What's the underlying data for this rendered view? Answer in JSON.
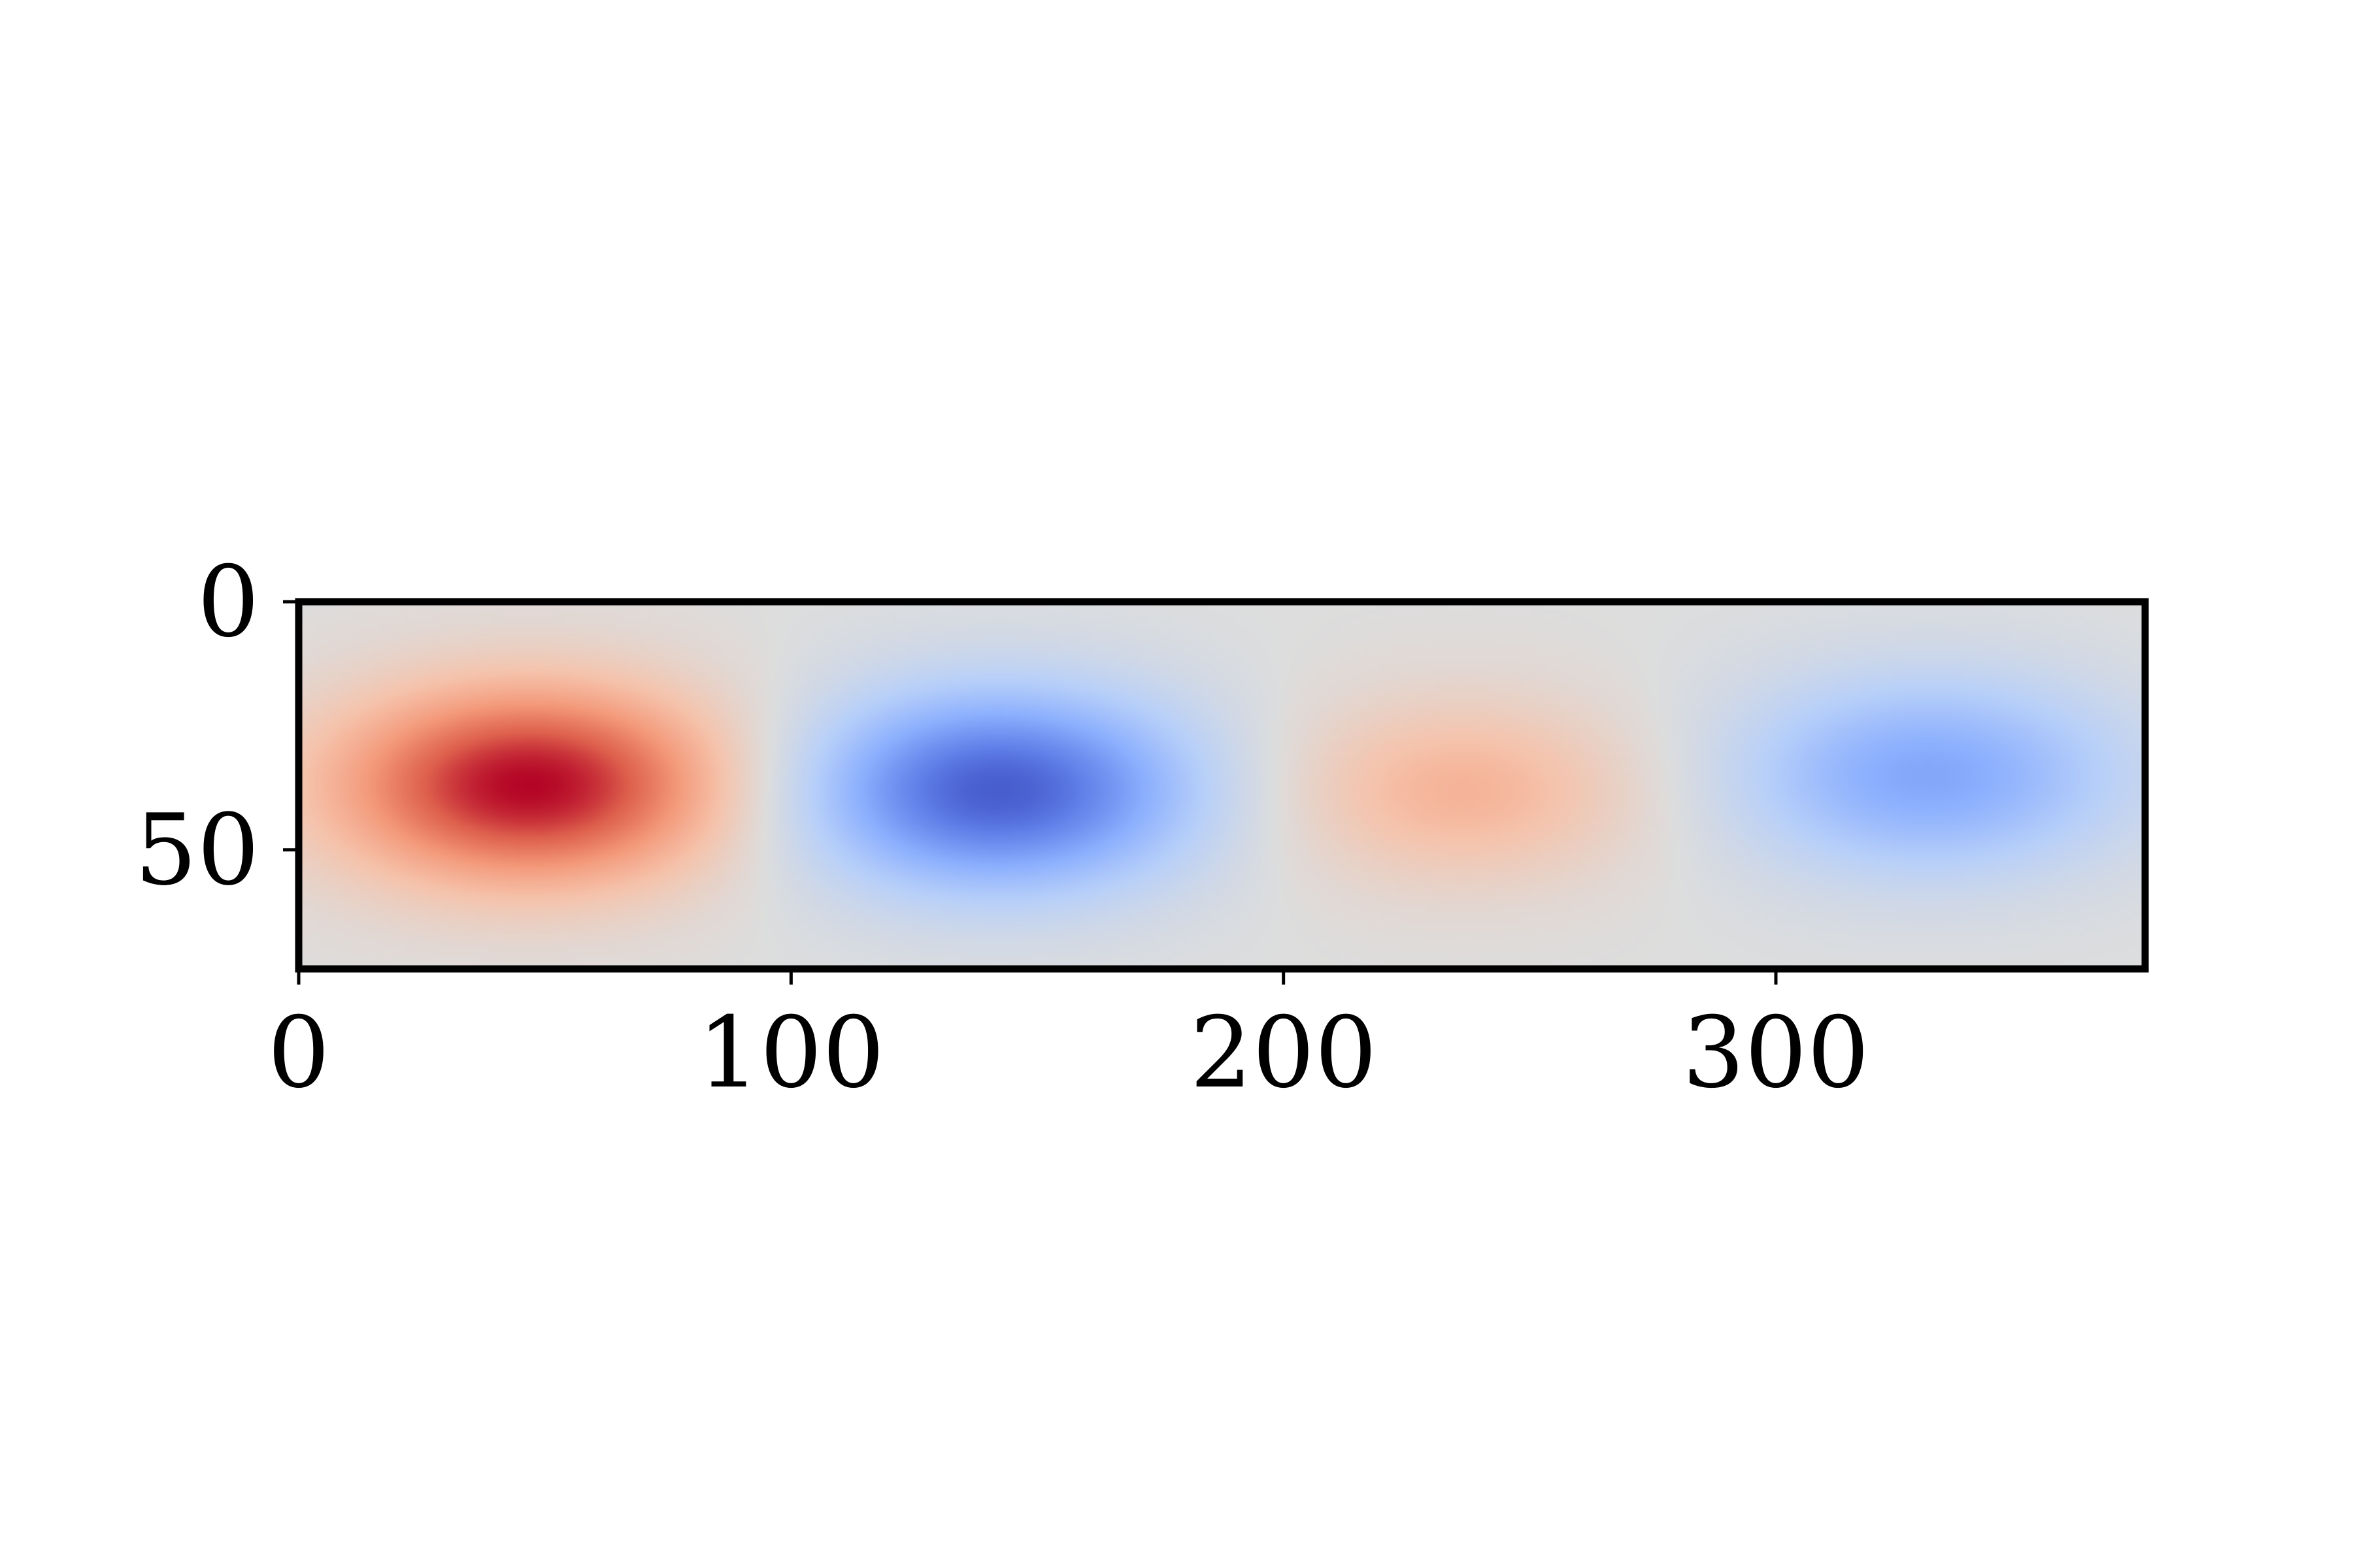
{
  "chart_data": {
    "type": "heatmap",
    "colormap": "coolwarm",
    "title": "",
    "xlabel": "",
    "ylabel": "",
    "xlim": [
      0,
      375
    ],
    "ylim": [
      74,
      0
    ],
    "grid": false,
    "legend": "none",
    "x_ticks": [
      {
        "value": 0,
        "label": "0"
      },
      {
        "value": 100,
        "label": "100"
      },
      {
        "value": 200,
        "label": "200"
      },
      {
        "value": 300,
        "label": "300"
      }
    ],
    "y_ticks": [
      {
        "value": 0,
        "label": "0"
      },
      {
        "value": 50,
        "label": "50"
      }
    ],
    "value_range": [
      -1,
      1
    ],
    "blobs": [
      {
        "center_x": 47,
        "center_y": 37,
        "sigma_x": 28,
        "sigma_y": 14,
        "amplitude": 1.0
      },
      {
        "center_x": 142,
        "center_y": 38,
        "sigma_x": 28,
        "sigma_y": 14,
        "amplitude": -0.92
      },
      {
        "center_x": 236,
        "center_y": 38,
        "sigma_x": 26,
        "sigma_y": 13,
        "amplitude": 0.35
      },
      {
        "center_x": 331,
        "center_y": 35,
        "sigma_x": 28,
        "sigma_y": 14,
        "amplitude": -0.55
      }
    ]
  }
}
